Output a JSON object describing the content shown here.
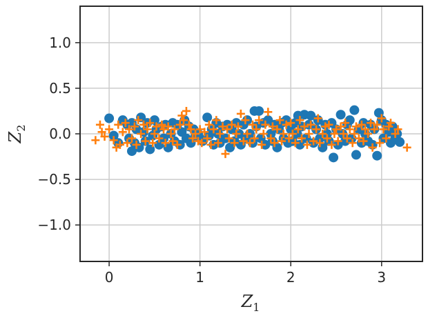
{
  "chart_data": {
    "type": "scatter",
    "xlabel": "Z",
    "xlabel_subscript": "1",
    "ylabel": "Z",
    "ylabel_subscript": "2",
    "xlim": [
      -0.32,
      3.45
    ],
    "ylim": [
      -1.4,
      1.4
    ],
    "xticks": [
      0,
      1,
      2,
      3
    ],
    "xtick_labels": [
      "0",
      "1",
      "2",
      "3"
    ],
    "yticks": [
      1.0,
      0.5,
      0.0,
      -0.5,
      -1.0
    ],
    "ytick_labels": [
      "1.0",
      "0.5",
      "0.0",
      "−0.5",
      "−1.0"
    ],
    "grid": true,
    "legend": false,
    "series": [
      {
        "marker": "circle",
        "color": "#1f77b4",
        "points": [
          [
            0.0,
            0.17
          ],
          [
            0.05,
            -0.02
          ],
          [
            0.1,
            -0.1
          ],
          [
            0.15,
            0.15
          ],
          [
            0.2,
            0.1
          ],
          [
            0.22,
            -0.05
          ],
          [
            0.25,
            0.12
          ],
          [
            0.25,
            -0.19
          ],
          [
            0.28,
            -0.1
          ],
          [
            0.3,
            0.05
          ],
          [
            0.33,
            -0.15
          ],
          [
            0.35,
            0.18
          ],
          [
            0.38,
            0.02
          ],
          [
            0.4,
            -0.08
          ],
          [
            0.42,
            0.12
          ],
          [
            0.45,
            -0.17
          ],
          [
            0.48,
            -0.02
          ],
          [
            0.5,
            0.15
          ],
          [
            0.52,
            0.05
          ],
          [
            0.55,
            -0.12
          ],
          [
            0.58,
            0.08
          ],
          [
            0.6,
            -0.05
          ],
          [
            0.62,
            0.1
          ],
          [
            0.65,
            -0.15
          ],
          [
            0.68,
            0.0
          ],
          [
            0.7,
            0.12
          ],
          [
            0.72,
            -0.08
          ],
          [
            0.75,
            0.1
          ],
          [
            0.78,
            -0.12
          ],
          [
            0.8,
            0.02
          ],
          [
            0.83,
            0.15
          ],
          [
            0.85,
            -0.05
          ],
          [
            0.88,
            0.08
          ],
          [
            0.9,
            -0.1
          ],
          [
            0.93,
            0.05
          ],
          [
            0.95,
            -0.02
          ],
          [
            0.98,
            0.0
          ],
          [
            1.0,
            -0.05
          ],
          [
            1.03,
            -0.08
          ],
          [
            1.08,
            0.18
          ],
          [
            1.1,
            -0.02
          ],
          [
            1.13,
            0.05
          ],
          [
            1.15,
            -0.12
          ],
          [
            1.18,
            0.12
          ],
          [
            1.2,
            0.0
          ],
          [
            1.22,
            -0.1
          ],
          [
            1.25,
            0.08
          ],
          [
            1.28,
            -0.05
          ],
          [
            1.3,
            0.1
          ],
          [
            1.33,
            -0.15
          ],
          [
            1.35,
            0.05
          ],
          [
            1.38,
            -0.08
          ],
          [
            1.4,
            0.12
          ],
          [
            1.43,
            0.0
          ],
          [
            1.45,
            -0.12
          ],
          [
            1.48,
            0.1
          ],
          [
            1.5,
            -0.05
          ],
          [
            1.52,
            0.15
          ],
          [
            1.55,
            0.0
          ],
          [
            1.58,
            -0.1
          ],
          [
            1.6,
            0.25
          ],
          [
            1.62,
            0.08
          ],
          [
            1.65,
            0.25
          ],
          [
            1.67,
            -0.05
          ],
          [
            1.7,
            0.12
          ],
          [
            1.72,
            -0.12
          ],
          [
            1.75,
            0.15
          ],
          [
            1.78,
            0.0
          ],
          [
            1.8,
            -0.08
          ],
          [
            1.82,
            0.1
          ],
          [
            1.85,
            -0.15
          ],
          [
            1.87,
            0.05
          ],
          [
            1.9,
            0.12
          ],
          [
            1.92,
            -0.05
          ],
          [
            1.95,
            0.15
          ],
          [
            1.97,
            -0.1
          ],
          [
            2.0,
            0.05
          ],
          [
            2.02,
            -0.08
          ],
          [
            2.05,
            0.12
          ],
          [
            2.07,
            0.0
          ],
          [
            2.08,
            0.2
          ],
          [
            2.1,
            -0.12
          ],
          [
            2.12,
            0.08
          ],
          [
            2.15,
            0.21
          ],
          [
            2.17,
            -0.05
          ],
          [
            2.2,
            0.1
          ],
          [
            2.22,
            0.2
          ],
          [
            2.25,
            -0.1
          ],
          [
            2.28,
            0.05
          ],
          [
            2.3,
            0.15
          ],
          [
            2.32,
            -0.05
          ],
          [
            2.35,
            -0.15
          ],
          [
            2.38,
            0.1
          ],
          [
            2.4,
            0.0
          ],
          [
            2.42,
            -0.08
          ],
          [
            2.45,
            0.12
          ],
          [
            2.47,
            -0.26
          ],
          [
            2.5,
            0.05
          ],
          [
            2.52,
            -0.12
          ],
          [
            2.55,
            0.21
          ],
          [
            2.57,
            0.0
          ],
          [
            2.6,
            -0.08
          ],
          [
            2.62,
            0.1
          ],
          [
            2.65,
            0.15
          ],
          [
            2.67,
            -0.05
          ],
          [
            2.7,
            0.26
          ],
          [
            2.72,
            -0.23
          ],
          [
            2.75,
            0.05
          ],
          [
            2.78,
            -0.1
          ],
          [
            2.8,
            0.12
          ],
          [
            2.82,
            0.0
          ],
          [
            2.85,
            -0.08
          ],
          [
            2.88,
            0.1
          ],
          [
            2.9,
            -0.12
          ],
          [
            2.92,
            0.05
          ],
          [
            2.95,
            -0.24
          ],
          [
            2.97,
            0.23
          ],
          [
            3.0,
            0.15
          ],
          [
            3.02,
            -0.05
          ],
          [
            3.05,
            0.1
          ],
          [
            3.08,
            0.02
          ],
          [
            3.1,
            -0.1
          ],
          [
            3.12,
            0.08
          ],
          [
            3.15,
            -0.05
          ],
          [
            3.17,
            0.0
          ],
          [
            3.2,
            -0.09
          ]
        ]
      },
      {
        "marker": "plus",
        "color": "#ff7f0e",
        "points": [
          [
            -0.15,
            -0.07
          ],
          [
            -0.1,
            0.1
          ],
          [
            -0.08,
            0.02
          ],
          [
            -0.05,
            -0.03
          ],
          [
            0.0,
            0.05
          ],
          [
            0.05,
            -0.07
          ],
          [
            0.08,
            -0.15
          ],
          [
            0.1,
            0.1
          ],
          [
            0.12,
            -0.12
          ],
          [
            0.15,
            0.02
          ],
          [
            0.18,
            0.12
          ],
          [
            0.2,
            -0.1
          ],
          [
            0.22,
            0.05
          ],
          [
            0.25,
            -0.05
          ],
          [
            0.28,
            0.08
          ],
          [
            0.3,
            -0.12
          ],
          [
            0.32,
            0.15
          ],
          [
            0.35,
            0.0
          ],
          [
            0.38,
            0.1
          ],
          [
            0.4,
            -0.08
          ],
          [
            0.42,
            0.05
          ],
          [
            0.45,
            0.12
          ],
          [
            0.48,
            -0.1
          ],
          [
            0.5,
            0.0
          ],
          [
            0.52,
            0.08
          ],
          [
            0.55,
            -0.05
          ],
          [
            0.58,
            0.1
          ],
          [
            0.6,
            0.05
          ],
          [
            0.62,
            -0.1
          ],
          [
            0.65,
            0.08
          ],
          [
            0.68,
            0.0
          ],
          [
            0.7,
            -0.08
          ],
          [
            0.72,
            0.05
          ],
          [
            0.75,
            -0.12
          ],
          [
            0.78,
            0.1
          ],
          [
            0.8,
            0.2
          ],
          [
            0.82,
            0.15
          ],
          [
            0.85,
            0.25
          ],
          [
            0.88,
            0.1
          ],
          [
            0.9,
            0.05
          ],
          [
            0.92,
            -0.05
          ],
          [
            0.95,
            0.0
          ],
          [
            0.98,
            -0.08
          ],
          [
            1.0,
            0.05
          ],
          [
            1.02,
            -0.1
          ],
          [
            1.05,
            0.02
          ],
          [
            1.08,
            -0.05
          ],
          [
            1.1,
            0.1
          ],
          [
            1.12,
            -0.12
          ],
          [
            1.15,
            0.05
          ],
          [
            1.18,
            0.15
          ],
          [
            1.2,
            -0.1
          ],
          [
            1.22,
            0.0
          ],
          [
            1.25,
            0.08
          ],
          [
            1.28,
            -0.22
          ],
          [
            1.3,
            0.05
          ],
          [
            1.32,
            -0.05
          ],
          [
            1.35,
            0.1
          ],
          [
            1.38,
            -0.1
          ],
          [
            1.4,
            0.0
          ],
          [
            1.42,
            0.08
          ],
          [
            1.45,
            0.22
          ],
          [
            1.48,
            -0.08
          ],
          [
            1.5,
            0.15
          ],
          [
            1.52,
            0.0
          ],
          [
            1.55,
            -0.1
          ],
          [
            1.58,
            0.1
          ],
          [
            1.6,
            -0.05
          ],
          [
            1.62,
            0.05
          ],
          [
            1.65,
            0.15
          ],
          [
            1.68,
            -0.12
          ],
          [
            1.7,
            0.0
          ],
          [
            1.72,
            0.1
          ],
          [
            1.75,
            0.24
          ],
          [
            1.78,
            -0.05
          ],
          [
            1.8,
            0.08
          ],
          [
            1.82,
            -0.1
          ],
          [
            1.85,
            0.05
          ],
          [
            1.88,
            0.15
          ],
          [
            1.9,
            -0.08
          ],
          [
            1.92,
            0.0
          ],
          [
            1.95,
            0.1
          ],
          [
            1.98,
            -0.05
          ],
          [
            2.0,
            0.12
          ],
          [
            2.02,
            0.0
          ],
          [
            2.05,
            -0.1
          ],
          [
            2.08,
            0.05
          ],
          [
            2.1,
            0.15
          ],
          [
            2.12,
            -0.05
          ],
          [
            2.15,
            0.08
          ],
          [
            2.18,
            -0.12
          ],
          [
            2.2,
            0.0
          ],
          [
            2.22,
            0.1
          ],
          [
            2.25,
            -0.08
          ],
          [
            2.28,
            0.05
          ],
          [
            2.3,
            0.17
          ],
          [
            2.32,
            -0.1
          ],
          [
            2.35,
            0.0
          ],
          [
            2.38,
            0.08
          ],
          [
            2.4,
            -0.05
          ],
          [
            2.42,
            0.1
          ],
          [
            2.45,
            -0.12
          ],
          [
            2.48,
            0.0
          ],
          [
            2.5,
            0.05
          ],
          [
            2.52,
            -0.08
          ],
          [
            2.55,
            0.08
          ],
          [
            2.58,
            0.0
          ],
          [
            2.6,
            0.12
          ],
          [
            2.62,
            -0.05
          ],
          [
            2.65,
            0.05
          ],
          [
            2.68,
            -0.1
          ],
          [
            2.7,
            0.0
          ],
          [
            2.72,
            0.08
          ],
          [
            2.75,
            -0.05
          ],
          [
            2.78,
            0.1
          ],
          [
            2.8,
            -0.08
          ],
          [
            2.82,
            0.05
          ],
          [
            2.85,
            0.0
          ],
          [
            2.88,
            0.12
          ],
          [
            2.9,
            -0.15
          ],
          [
            2.92,
            0.05
          ],
          [
            2.95,
            0.1
          ],
          [
            2.98,
            -0.1
          ],
          [
            3.0,
            0.17
          ],
          [
            3.02,
            0.05
          ],
          [
            3.05,
            -0.05
          ],
          [
            3.08,
            0.08
          ],
          [
            3.1,
            0.12
          ],
          [
            3.15,
            0.0
          ],
          [
            3.18,
            0.05
          ],
          [
            3.28,
            -0.15
          ]
        ]
      }
    ]
  }
}
